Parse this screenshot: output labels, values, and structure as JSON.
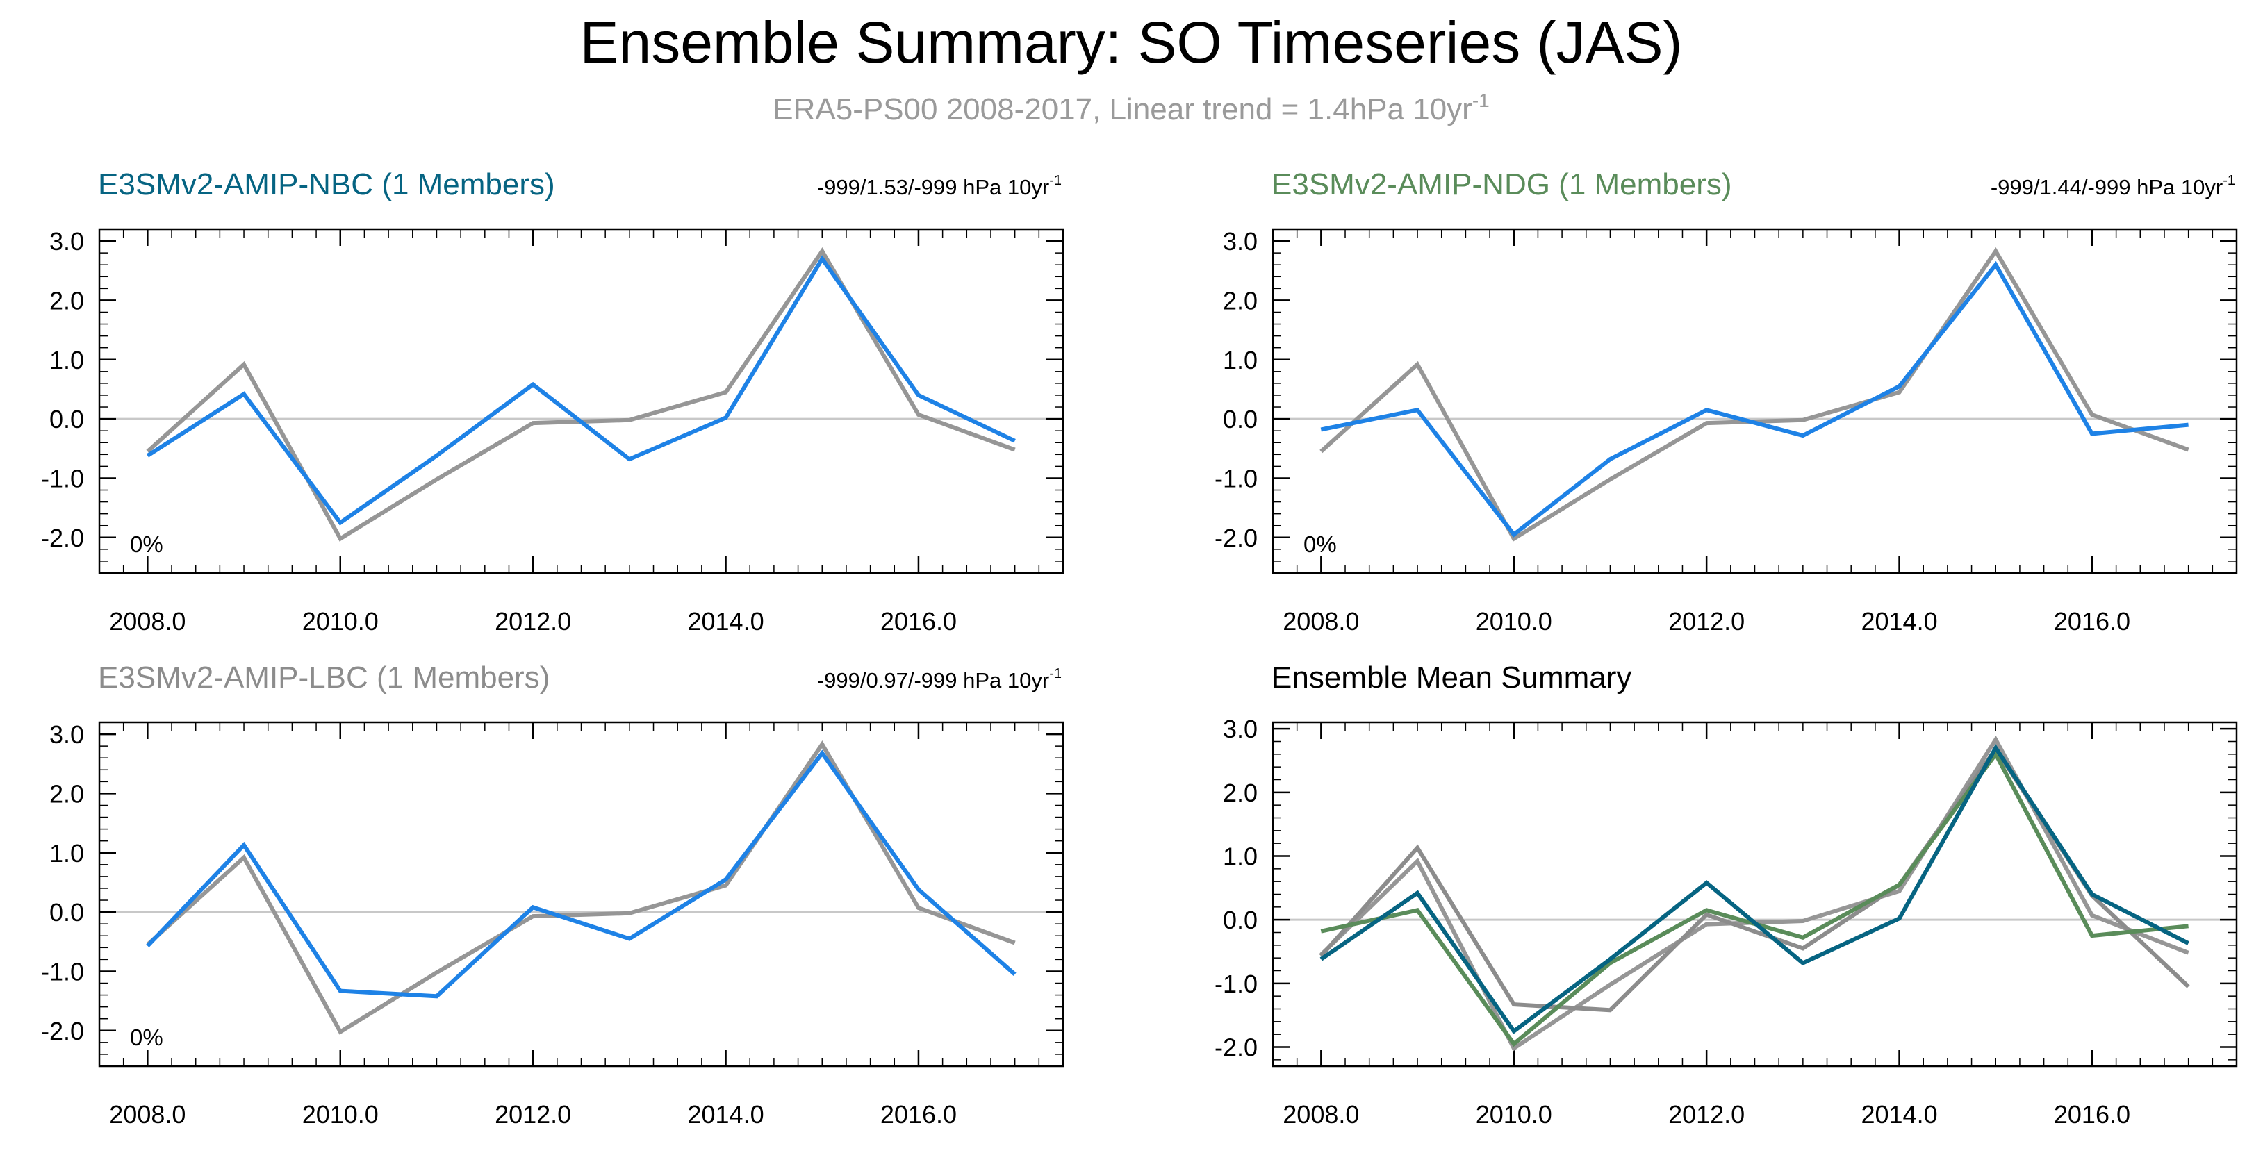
{
  "page": {
    "title": "Ensemble Summary: SO Timeseries (JAS)",
    "subtitle_main": "ERA5-PS00 2008-2017, Linear trend = 1.4hPa 10yr",
    "subtitle_sup": "-1"
  },
  "colors": {
    "obs": "#969696",
    "model": "#1e82e6",
    "nbc": "#066482",
    "ndg": "#5a8c5a",
    "lbc": "#8c8c8c",
    "axis": "#000000",
    "zero_line": "#c8c8c8"
  },
  "chart_data": [
    {
      "type": "line",
      "title": "E3SMv2-AMIP-NBC (1 Members)",
      "title_color": "#066482",
      "trend_text": "-999/1.53/-999 hPa 10yr",
      "trend_sup": "-1",
      "annotation": "0%",
      "x": [
        2008,
        2009,
        2010,
        2011,
        2012,
        2013,
        2014,
        2015,
        2016,
        2017
      ],
      "xlim": [
        2007.5,
        2017.5
      ],
      "ylim": [
        -2.6,
        3.2
      ],
      "xticks": [
        2008,
        2010,
        2012,
        2014,
        2016
      ],
      "xtick_labels": [
        "2008.0",
        "2010.0",
        "2012.0",
        "2014.0",
        "2016.0"
      ],
      "yticks": [
        -2,
        -1,
        0,
        1,
        2,
        3
      ],
      "ytick_labels": [
        "-2.0",
        "-1.0",
        "0.0",
        "1.0",
        "2.0",
        "3.0"
      ],
      "series": [
        {
          "name": "ERA5-PS00",
          "color": "#969696",
          "values": [
            -0.55,
            0.92,
            -2.02,
            -1.02,
            -0.07,
            -0.02,
            0.45,
            2.83,
            0.07,
            -0.52
          ]
        },
        {
          "name": "E3SMv2-AMIP-NBC",
          "color": "#1e82e6",
          "values": [
            -0.62,
            0.42,
            -1.75,
            -0.62,
            0.58,
            -0.68,
            0.02,
            2.7,
            0.4,
            -0.37
          ]
        }
      ]
    },
    {
      "type": "line",
      "title": "E3SMv2-AMIP-NDG (1 Members)",
      "title_color": "#5a8c5a",
      "trend_text": "-999/1.44/-999 hPa 10yr",
      "trend_sup": "-1",
      "annotation": "0%",
      "x": [
        2008,
        2009,
        2010,
        2011,
        2012,
        2013,
        2014,
        2015,
        2016,
        2017
      ],
      "xlim": [
        2007.5,
        2017.5
      ],
      "ylim": [
        -2.6,
        3.2
      ],
      "xticks": [
        2008,
        2010,
        2012,
        2014,
        2016
      ],
      "xtick_labels": [
        "2008.0",
        "2010.0",
        "2012.0",
        "2014.0",
        "2016.0"
      ],
      "yticks": [
        -2,
        -1,
        0,
        1,
        2,
        3
      ],
      "ytick_labels": [
        "-2.0",
        "-1.0",
        "0.0",
        "1.0",
        "2.0",
        "3.0"
      ],
      "series": [
        {
          "name": "ERA5-PS00",
          "color": "#969696",
          "values": [
            -0.55,
            0.92,
            -2.02,
            -1.02,
            -0.07,
            -0.02,
            0.45,
            2.83,
            0.07,
            -0.52
          ]
        },
        {
          "name": "E3SMv2-AMIP-NDG",
          "color": "#1e82e6",
          "values": [
            -0.18,
            0.15,
            -1.95,
            -0.68,
            0.15,
            -0.28,
            0.55,
            2.6,
            -0.25,
            -0.1
          ]
        }
      ]
    },
    {
      "type": "line",
      "title": "E3SMv2-AMIP-LBC (1 Members)",
      "title_color": "#8c8c8c",
      "trend_text": "-999/0.97/-999 hPa 10yr",
      "trend_sup": "-1",
      "annotation": "0%",
      "x": [
        2008,
        2009,
        2010,
        2011,
        2012,
        2013,
        2014,
        2015,
        2016,
        2017
      ],
      "xlim": [
        2007.5,
        2017.5
      ],
      "ylim": [
        -2.6,
        3.2
      ],
      "xticks": [
        2008,
        2010,
        2012,
        2014,
        2016
      ],
      "xtick_labels": [
        "2008.0",
        "2010.0",
        "2012.0",
        "2014.0",
        "2016.0"
      ],
      "yticks": [
        -2,
        -1,
        0,
        1,
        2,
        3
      ],
      "ytick_labels": [
        "-2.0",
        "-1.0",
        "0.0",
        "1.0",
        "2.0",
        "3.0"
      ],
      "series": [
        {
          "name": "ERA5-PS00",
          "color": "#969696",
          "values": [
            -0.55,
            0.92,
            -2.02,
            -1.02,
            -0.07,
            -0.02,
            0.45,
            2.83,
            0.07,
            -0.52
          ]
        },
        {
          "name": "E3SMv2-AMIP-LBC",
          "color": "#1e82e6",
          "values": [
            -0.57,
            1.13,
            -1.33,
            -1.42,
            0.08,
            -0.45,
            0.55,
            2.68,
            0.38,
            -1.05
          ]
        }
      ]
    },
    {
      "type": "line",
      "title": "Ensemble Mean Summary",
      "title_color": "#000000",
      "trend_text": "",
      "trend_sup": "",
      "annotation": "",
      "x": [
        2008,
        2009,
        2010,
        2011,
        2012,
        2013,
        2014,
        2015,
        2016,
        2017
      ],
      "xlim": [
        2007.5,
        2017.5
      ],
      "ylim": [
        -2.3,
        3.1
      ],
      "xticks": [
        2008,
        2010,
        2012,
        2014,
        2016
      ],
      "xtick_labels": [
        "2008.0",
        "2010.0",
        "2012.0",
        "2014.0",
        "2016.0"
      ],
      "yticks": [
        -2,
        -1,
        0,
        1,
        2,
        3
      ],
      "ytick_labels": [
        "-2.0",
        "-1.0",
        "0.0",
        "1.0",
        "2.0",
        "3.0"
      ],
      "series": [
        {
          "name": "ERA5-PS00",
          "color": "#969696",
          "values": [
            -0.55,
            0.92,
            -2.02,
            -1.02,
            -0.07,
            -0.02,
            0.45,
            2.83,
            0.07,
            -0.52
          ]
        },
        {
          "name": "E3SMv2-AMIP-LBC",
          "color": "#8c8c8c",
          "values": [
            -0.57,
            1.13,
            -1.33,
            -1.42,
            0.08,
            -0.45,
            0.55,
            2.68,
            0.38,
            -1.05
          ]
        },
        {
          "name": "E3SMv2-AMIP-NDG",
          "color": "#5a8c5a",
          "values": [
            -0.18,
            0.15,
            -1.95,
            -0.68,
            0.15,
            -0.28,
            0.55,
            2.6,
            -0.25,
            -0.1
          ]
        },
        {
          "name": "E3SMv2-AMIP-NBC",
          "color": "#066482",
          "values": [
            -0.62,
            0.42,
            -1.75,
            -0.62,
            0.58,
            -0.68,
            0.02,
            2.7,
            0.4,
            -0.37
          ]
        }
      ]
    }
  ]
}
